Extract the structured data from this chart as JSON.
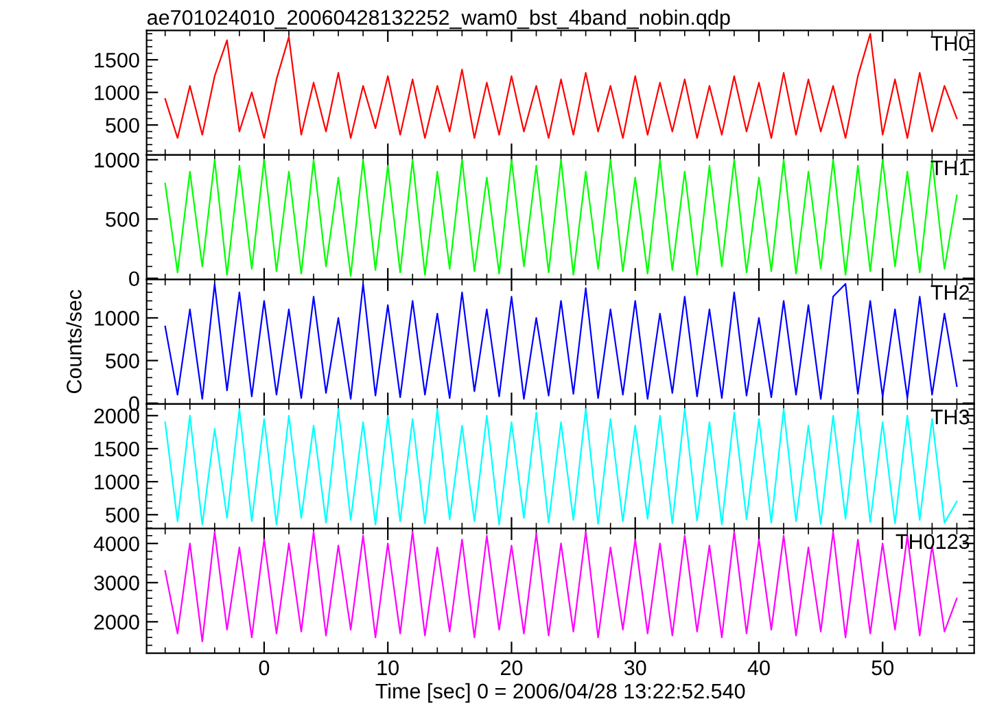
{
  "chart_data": [
    {
      "type": "line",
      "title": "ae701024010_20060428132252_wam0_bst_4band_nobin.qdp",
      "xlim": [
        -9.5,
        57.4
      ],
      "xticks": [
        0,
        10,
        20,
        30,
        40,
        50
      ],
      "ylim": [
        40,
        1950
      ],
      "yticks": [
        500,
        1000,
        1500
      ],
      "tick_labels": "y",
      "x": [
        -8,
        -7,
        -6,
        -5,
        -4,
        -3,
        -2,
        -1,
        0,
        1,
        2,
        3,
        4,
        5,
        6,
        7,
        8,
        9,
        10,
        11,
        12,
        13,
        14,
        15,
        16,
        17,
        18,
        19,
        20,
        21,
        22,
        23,
        24,
        25,
        26,
        27,
        28,
        29,
        30,
        31,
        32,
        33,
        34,
        35,
        36,
        37,
        38,
        39,
        40,
        41,
        42,
        43,
        44,
        45,
        46,
        47,
        48,
        49,
        50,
        51,
        52,
        53,
        54,
        55,
        56
      ],
      "series": [
        {
          "name": "TH0",
          "color": "#ff0000",
          "values": [
            900,
            300,
            1100,
            350,
            1250,
            1800,
            400,
            1000,
            300,
            1200,
            1850,
            350,
            1150,
            400,
            1300,
            300,
            1100,
            450,
            1250,
            350,
            1200,
            300,
            1100,
            400,
            1350,
            300,
            1150,
            350,
            1250,
            400,
            1100,
            300,
            1200,
            350,
            1300,
            400,
            1100,
            300,
            1250,
            350,
            1150,
            400,
            1200,
            300,
            1100,
            350,
            1250,
            400,
            1150,
            300,
            1300,
            350,
            1200,
            400,
            1100,
            300,
            1250,
            1900,
            350,
            1200,
            300,
            1300,
            400,
            1100,
            600
          ]
        }
      ]
    },
    {
      "type": "line",
      "xlim": [
        -9.5,
        57.4
      ],
      "xticks": [
        0,
        10,
        20,
        30,
        40,
        50
      ],
      "ylim": [
        -10,
        1040
      ],
      "yticks": [
        0,
        500,
        1000
      ],
      "tick_labels": "y",
      "x": [
        -8,
        -7,
        -6,
        -5,
        -4,
        -3,
        -2,
        -1,
        0,
        1,
        2,
        3,
        4,
        5,
        6,
        7,
        8,
        9,
        10,
        11,
        12,
        13,
        14,
        15,
        16,
        17,
        18,
        19,
        20,
        21,
        22,
        23,
        24,
        25,
        26,
        27,
        28,
        29,
        30,
        31,
        32,
        33,
        34,
        35,
        36,
        37,
        38,
        39,
        40,
        41,
        42,
        43,
        44,
        45,
        46,
        47,
        48,
        49,
        50,
        51,
        52,
        53,
        54,
        55,
        56
      ],
      "series": [
        {
          "name": "TH1",
          "color": "#00ff00",
          "values": [
            800,
            50,
            900,
            100,
            1000,
            30,
            950,
            80,
            1000,
            60,
            900,
            40,
            1000,
            100,
            850,
            20,
            1000,
            70,
            950,
            50,
            1000,
            30,
            900,
            80,
            1000,
            60,
            850,
            40,
            1000,
            100,
            950,
            50,
            1000,
            30,
            900,
            80,
            1000,
            60,
            850,
            40,
            1000,
            70,
            900,
            30,
            950,
            100,
            1000,
            50,
            850,
            60,
            1000,
            40,
            900,
            80,
            1000,
            30,
            950,
            60,
            1000,
            100,
            900,
            50,
            1000,
            80,
            700
          ]
        }
      ]
    },
    {
      "type": "line",
      "xlim": [
        -9.5,
        57.4
      ],
      "xticks": [
        0,
        10,
        20,
        30,
        40,
        50
      ],
      "ylim": [
        -10,
        1450
      ],
      "yticks": [
        0,
        500,
        1000
      ],
      "tick_labels": "y",
      "ylabel": "Counts/sec",
      "x": [
        -8,
        -7,
        -6,
        -5,
        -4,
        -3,
        -2,
        -1,
        0,
        1,
        2,
        3,
        4,
        5,
        6,
        7,
        8,
        9,
        10,
        11,
        12,
        13,
        14,
        15,
        16,
        17,
        18,
        19,
        20,
        21,
        22,
        23,
        24,
        25,
        26,
        27,
        28,
        29,
        30,
        31,
        32,
        33,
        34,
        35,
        36,
        37,
        38,
        39,
        40,
        41,
        42,
        43,
        44,
        45,
        46,
        47,
        48,
        49,
        50,
        51,
        52,
        53,
        54,
        55,
        56
      ],
      "series": [
        {
          "name": "TH2",
          "color": "#0000ff",
          "values": [
            900,
            100,
            1100,
            50,
            1400,
            150,
            1300,
            80,
            1200,
            100,
            1100,
            60,
            1250,
            120,
            1000,
            50,
            1400,
            90,
            1150,
            70,
            1200,
            100,
            1050,
            60,
            1300,
            140,
            1100,
            80,
            1250,
            50,
            1000,
            90,
            1200,
            110,
            1350,
            60,
            1100,
            100,
            1200,
            50,
            1050,
            120,
            1250,
            80,
            1100,
            60,
            1300,
            90,
            1000,
            70,
            1200,
            100,
            1150,
            50,
            1250,
            1400,
            110,
            1200,
            80,
            1100,
            60,
            1250,
            100,
            1050,
            200
          ]
        }
      ]
    },
    {
      "type": "line",
      "xlim": [
        -9.5,
        57.4
      ],
      "xticks": [
        0,
        10,
        20,
        30,
        40,
        50
      ],
      "ylim": [
        290,
        2175
      ],
      "yticks": [
        500,
        1000,
        1500,
        2000
      ],
      "tick_labels": "y",
      "x": [
        -8,
        -7,
        -6,
        -5,
        -4,
        -3,
        -2,
        -1,
        0,
        1,
        2,
        3,
        4,
        5,
        6,
        7,
        8,
        9,
        10,
        11,
        12,
        13,
        14,
        15,
        16,
        17,
        18,
        19,
        20,
        21,
        22,
        23,
        24,
        25,
        26,
        27,
        28,
        29,
        30,
        31,
        32,
        33,
        34,
        35,
        36,
        37,
        38,
        39,
        40,
        41,
        42,
        43,
        44,
        45,
        46,
        47,
        48,
        49,
        50,
        51,
        52,
        53,
        54,
        55,
        56
      ],
      "series": [
        {
          "name": "TH3",
          "color": "#00ffff",
          "values": [
            1900,
            400,
            2000,
            350,
            1800,
            450,
            2100,
            400,
            1950,
            350,
            2000,
            450,
            1850,
            380,
            2100,
            420,
            1900,
            350,
            2000,
            400,
            1950,
            370,
            2100,
            430,
            1850,
            400,
            2000,
            350,
            1900,
            450,
            2050,
            380,
            1900,
            420,
            2100,
            360,
            1950,
            400,
            1850,
            440,
            2000,
            370,
            2100,
            410,
            1900,
            350,
            2050,
            430,
            1950,
            380,
            2100,
            400,
            1850,
            360,
            2000,
            440,
            2100,
            390,
            1900,
            370,
            2000,
            420,
            1950,
            380,
            700
          ]
        }
      ]
    },
    {
      "type": "line",
      "xlim": [
        -9.5,
        57.4
      ],
      "xticks": [
        0,
        10,
        20,
        30,
        40,
        50
      ],
      "ylim": [
        1200,
        4380
      ],
      "yticks": [
        2000,
        3000,
        4000
      ],
      "xlabel": "Time [sec] 0 = 2006/04/28 13:22:52.540",
      "x": [
        -8,
        -7,
        -6,
        -5,
        -4,
        -3,
        -2,
        -1,
        0,
        1,
        2,
        3,
        4,
        5,
        6,
        7,
        8,
        9,
        10,
        11,
        12,
        13,
        14,
        15,
        16,
        17,
        18,
        19,
        20,
        21,
        22,
        23,
        24,
        25,
        26,
        27,
        28,
        29,
        30,
        31,
        32,
        33,
        34,
        35,
        36,
        37,
        38,
        39,
        40,
        41,
        42,
        43,
        44,
        45,
        46,
        47,
        48,
        49,
        50,
        51,
        52,
        53,
        54,
        55,
        56
      ],
      "series": [
        {
          "name": "TH0123",
          "color": "#ff00ff",
          "values": [
            3300,
            1700,
            4000,
            1500,
            4300,
            1800,
            3900,
            1600,
            4100,
            1700,
            4000,
            1750,
            4300,
            1650,
            3950,
            1800,
            4200,
            1600,
            4000,
            1700,
            4300,
            1650,
            3900,
            1750,
            4100,
            1600,
            4200,
            1800,
            3950,
            1700,
            4250,
            1650,
            4000,
            1750,
            4300,
            1600,
            3900,
            1800,
            4100,
            1700,
            4000,
            1650,
            4200,
            1750,
            3950,
            1600,
            4300,
            1700,
            4100,
            1800,
            4200,
            1650,
            3900,
            1750,
            4300,
            1600,
            4100,
            1700,
            4000,
            1800,
            4200,
            1650,
            3950,
            1750,
            2600
          ]
        }
      ]
    }
  ]
}
